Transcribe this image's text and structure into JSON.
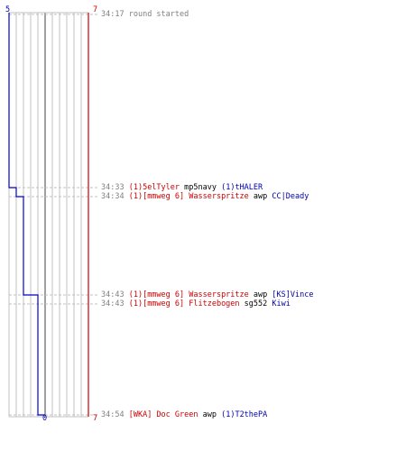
{
  "colors": {
    "ct": "#0000cc",
    "t": "#cc0000",
    "grid": "#c0c0c0",
    "time": "#808080",
    "text": "#000000"
  },
  "scores": {
    "blue_start": "5",
    "red_start": "7",
    "blue_end": "0",
    "red_end": "7"
  },
  "events": [
    {
      "time": "34:17",
      "parts": [
        {
          "text": "round started",
          "team": "time"
        }
      ]
    },
    {
      "time": "34:33",
      "parts": [
        {
          "text": "(1)5elTyler",
          "team": "red"
        },
        {
          "text": "mp5navy",
          "team": "blk"
        },
        {
          "text": "(1)tHALER",
          "team": "blue"
        }
      ]
    },
    {
      "time": "34:34",
      "parts": [
        {
          "text": "(1)[mmweg 6] Wasserspritze",
          "team": "red"
        },
        {
          "text": "awp",
          "team": "blk"
        },
        {
          "text": "CC|Deady",
          "team": "blue"
        }
      ]
    },
    {
      "time": "34:43",
      "parts": [
        {
          "text": "(1)[mmweg 6] Wasserspritze",
          "team": "red"
        },
        {
          "text": "awp",
          "team": "blk"
        },
        {
          "text": "[KS]Vince",
          "team": "blue"
        }
      ]
    },
    {
      "time": "34:43",
      "parts": [
        {
          "text": "(1)[mmweg 6] Flitzebogen",
          "team": "red"
        },
        {
          "text": "sg552",
          "team": "blk"
        },
        {
          "text": "Kiwi",
          "team": "blue"
        }
      ]
    },
    {
      "time": "34:54",
      "parts": [
        {
          "text": "[WKA] Doc Green",
          "team": "red"
        },
        {
          "text": "awp",
          "team": "blk"
        },
        {
          "text": "(1)T2thePA",
          "team": "blue"
        }
      ]
    }
  ]
}
